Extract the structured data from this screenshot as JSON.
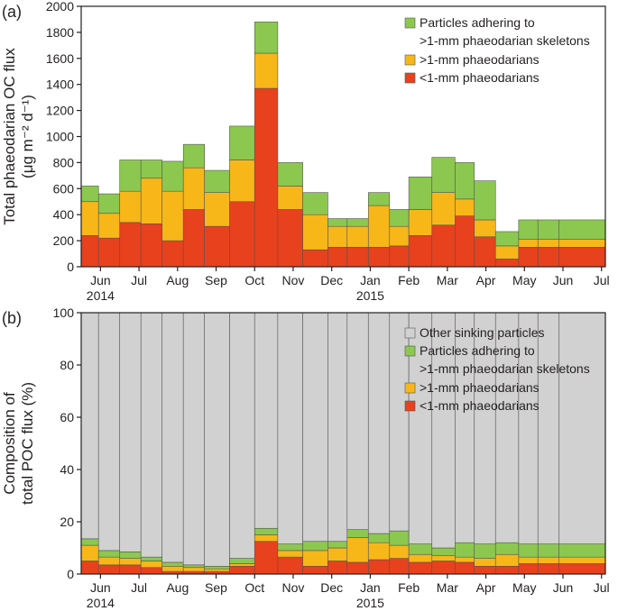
{
  "colors": {
    "lt1": "#e8411e",
    "gt1": "#f7b719",
    "adher": "#8cc84f",
    "other": "#d1d1d1",
    "axis": "#231f20"
  },
  "chart_data": [
    {
      "panel": "(a)",
      "type": "bar",
      "stacked": true,
      "ylabel_line1": "Total  phaeodarian OC flux",
      "ylabel_line2": "(μg m⁻² d⁻¹)",
      "ylim": [
        0,
        2000
      ],
      "yticks": [
        "0",
        "200",
        "400",
        "600",
        "800",
        "1000",
        "1200",
        "1400",
        "1600",
        "1800",
        "2000"
      ],
      "xticks": [
        "Jun",
        "Jul",
        "Aug",
        "Sep",
        "Oct",
        "Nov",
        "Dec",
        "Jan",
        "Feb",
        "Mar",
        "Apr",
        "May",
        "Jun",
        "Jul"
      ],
      "year_labels": [
        "2014",
        "2015"
      ],
      "x_domain": [
        0,
        13.6
      ],
      "periods": [
        [
          0,
          0.45
        ],
        [
          0.45,
          1
        ],
        [
          1,
          1.55
        ],
        [
          1.55,
          2.1
        ],
        [
          2.1,
          2.65
        ],
        [
          2.65,
          3.2
        ],
        [
          3.2,
          3.85
        ],
        [
          3.85,
          4.5
        ],
        [
          4.5,
          5.1
        ],
        [
          5.1,
          5.75
        ],
        [
          5.75,
          6.4
        ],
        [
          6.4,
          6.9
        ],
        [
          6.9,
          7.45
        ],
        [
          7.45,
          8
        ],
        [
          8,
          8.5
        ],
        [
          8.5,
          9.1
        ],
        [
          9.1,
          9.7
        ],
        [
          9.7,
          10.2
        ],
        [
          10.2,
          10.75
        ],
        [
          10.75,
          11.35
        ],
        [
          11.35,
          11.85
        ],
        [
          11.85,
          12.4
        ],
        [
          12.4,
          13.6
        ]
      ],
      "series": [
        {
          "name": "<1-mm phaeodarians",
          "color_key": "lt1",
          "values": [
            240,
            220,
            340,
            330,
            200,
            440,
            310,
            500,
            1370,
            440,
            130,
            150,
            150,
            150,
            160,
            240,
            320,
            390,
            230,
            60,
            150,
            150,
            150
          ]
        },
        {
          "name": ">1-mm phaeodarians",
          "color_key": "gt1",
          "values": [
            260,
            190,
            240,
            350,
            380,
            320,
            260,
            320,
            270,
            180,
            270,
            160,
            160,
            320,
            150,
            200,
            250,
            130,
            130,
            100,
            60,
            60,
            60
          ]
        },
        {
          "name": "Particles adhering to >1-mm phaeodarian skeletons",
          "color_key": "adher",
          "values": [
            120,
            150,
            240,
            140,
            230,
            180,
            170,
            260,
            240,
            180,
            170,
            60,
            60,
            100,
            130,
            250,
            270,
            280,
            300,
            110,
            150,
            150,
            150
          ]
        }
      ],
      "legend": [
        {
          "line1": "Particles adhering to",
          "line2": ">1-mm phaeodarian skeletons",
          "color_key": "adher"
        },
        {
          "line1": ">1-mm phaeodarians",
          "line2": "",
          "color_key": "gt1"
        },
        {
          "line1": "<1-mm phaeodarians",
          "line2": "",
          "color_key": "lt1"
        }
      ]
    },
    {
      "panel": "(b)",
      "type": "bar",
      "stacked": true,
      "ylabel_line1": "Composition of",
      "ylabel_line2": "total POC flux (%)",
      "ylim": [
        0,
        100
      ],
      "yticks": [
        "0",
        "20",
        "40",
        "60",
        "80",
        "100"
      ],
      "xticks": [
        "Jun",
        "Jul",
        "Aug",
        "Sep",
        "Oct",
        "Nov",
        "Dec",
        "Jan",
        "Feb",
        "Mar",
        "Apr",
        "May",
        "Jun",
        "Jul"
      ],
      "year_labels": [
        "2014",
        "2015"
      ],
      "x_domain": [
        0,
        13.6
      ],
      "periods": [
        [
          0,
          0.45
        ],
        [
          0.45,
          1
        ],
        [
          1,
          1.55
        ],
        [
          1.55,
          2.1
        ],
        [
          2.1,
          2.65
        ],
        [
          2.65,
          3.2
        ],
        [
          3.2,
          3.85
        ],
        [
          3.85,
          4.5
        ],
        [
          4.5,
          5.1
        ],
        [
          5.1,
          5.75
        ],
        [
          5.75,
          6.4
        ],
        [
          6.4,
          6.9
        ],
        [
          6.9,
          7.45
        ],
        [
          7.45,
          8
        ],
        [
          8,
          8.5
        ],
        [
          8.5,
          9.1
        ],
        [
          9.1,
          9.7
        ],
        [
          9.7,
          10.2
        ],
        [
          10.2,
          10.75
        ],
        [
          10.75,
          11.35
        ],
        [
          11.35,
          11.85
        ],
        [
          11.85,
          12.4
        ],
        [
          12.4,
          13.6
        ]
      ],
      "series": [
        {
          "name": "<1-mm phaeodarians",
          "color_key": "lt1",
          "values": [
            5,
            3.5,
            3.5,
            2.5,
            1,
            1,
            1,
            3,
            12.5,
            6.5,
            3,
            5,
            4.5,
            5.5,
            6,
            4.5,
            5,
            4.5,
            3,
            3,
            4,
            4,
            4
          ]
        },
        {
          "name": ">1-mm phaeodarians",
          "color_key": "gt1",
          "values": [
            6,
            3,
            2.5,
            2.5,
            2,
            1.5,
            1,
            1,
            2.5,
            2.5,
            6,
            5,
            9.5,
            6.5,
            5,
            3,
            2,
            2,
            3,
            4.5,
            2.5,
            2.5,
            2.5
          ]
        },
        {
          "name": "Particles adhering to >1-mm phaeodarian skeletons",
          "color_key": "adher",
          "values": [
            2.5,
            2.5,
            2.5,
            1.5,
            1.5,
            1,
            1,
            2,
            2.5,
            2.5,
            3.5,
            2.5,
            3,
            3.5,
            5.5,
            4,
            3,
            5.5,
            5.5,
            4.5,
            5,
            5,
            5
          ]
        },
        {
          "name": "Other sinking particles",
          "color_key": "other",
          "values": [
            86.5,
            91,
            91.5,
            93.5,
            95.5,
            96.5,
            97,
            94,
            82.5,
            88.5,
            87.5,
            87.5,
            83,
            84.5,
            83.5,
            88.5,
            90,
            88,
            88.5,
            88,
            88.5,
            88.5,
            88.5
          ]
        }
      ],
      "legend": [
        {
          "line1": "Other sinking particles",
          "line2": "",
          "color_key": "other"
        },
        {
          "line1": "Particles adhering to",
          "line2": ">1-mm phaeodarian skeletons",
          "color_key": "adher"
        },
        {
          "line1": ">1-mm phaeodarians",
          "line2": "",
          "color_key": "gt1"
        },
        {
          "line1": "<1-mm phaeodarians",
          "line2": "",
          "color_key": "lt1"
        }
      ]
    }
  ]
}
